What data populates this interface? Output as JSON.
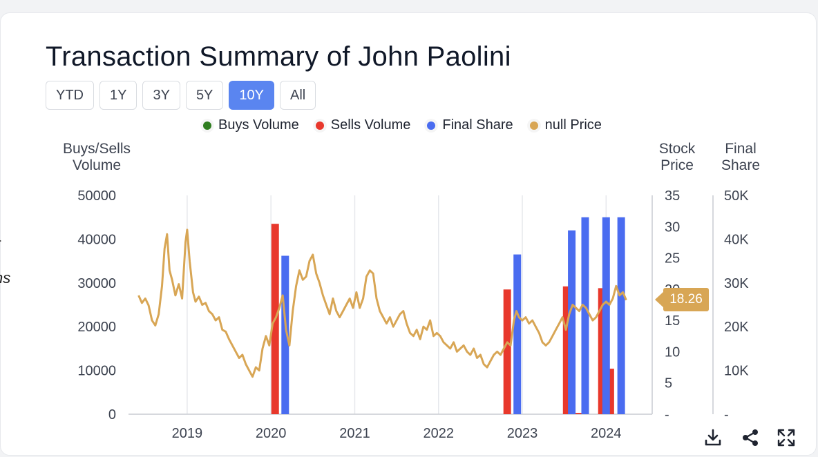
{
  "title": "Transaction Summary of John Paolini",
  "ranges": [
    "YTD",
    "1Y",
    "3Y",
    "5Y",
    "10Y",
    "All"
  ],
  "active_range": "10Y",
  "left_fragment": "ns",
  "tools": {
    "download": "download-icon",
    "share": "share-icon",
    "expand": "expand-icon"
  },
  "chart_data": {
    "type": "bar",
    "legend": [
      {
        "name": "Buys Volume",
        "color": "#2e7d1f"
      },
      {
        "name": "Sells Volume",
        "color": "#e8382c"
      },
      {
        "name": "Final Share",
        "color": "#4a6cf0"
      },
      {
        "name": "null Price",
        "color": "#d8a655"
      }
    ],
    "axes": {
      "left": {
        "title": "Buys/Sells Volume",
        "title_lines": [
          "Buys/Sells",
          "Volume"
        ],
        "ticks": [
          "50000",
          "40000",
          "30000",
          "20000",
          "10000",
          "0"
        ],
        "range": [
          0,
          50000
        ]
      },
      "price": {
        "title": "Stock Price",
        "title_lines": [
          "Stock",
          "Price"
        ],
        "ticks": [
          "35",
          "30",
          "25",
          "20",
          "15",
          "10",
          "5",
          "-"
        ],
        "range": [
          0,
          35
        ]
      },
      "share": {
        "title": "Final Share",
        "title_lines": [
          "Final",
          "Share"
        ],
        "ticks": [
          "50K",
          "40K",
          "30K",
          "20K",
          "10K",
          "-"
        ],
        "range": [
          0,
          50000
        ]
      },
      "x": {
        "ticks": [
          "2019",
          "2020",
          "2021",
          "2022",
          "2023",
          "2024"
        ],
        "range": [
          2018.3,
          2024.55
        ]
      }
    },
    "sells_volume": [
      {
        "x": 2020.05,
        "y": 43500
      },
      {
        "x": 2022.82,
        "y": 28500
      },
      {
        "x": 2023.53,
        "y": 29200
      },
      {
        "x": 2023.67,
        "y": 300
      },
      {
        "x": 2023.95,
        "y": 28800
      },
      {
        "x": 2024.05,
        "y": 10400
      }
    ],
    "final_share": [
      {
        "x": 2020.17,
        "y": 36200
      },
      {
        "x": 2022.94,
        "y": 36500
      },
      {
        "x": 2023.59,
        "y": 42000
      },
      {
        "x": 2023.75,
        "y": 45000
      },
      {
        "x": 2024.0,
        "y": 45000
      },
      {
        "x": 2024.18,
        "y": 45000
      }
    ],
    "price": {
      "last": "18.26",
      "points": [
        [
          2018.42,
          19.0
        ],
        [
          2018.46,
          17.8
        ],
        [
          2018.5,
          18.5
        ],
        [
          2018.54,
          17.4
        ],
        [
          2018.58,
          15.0
        ],
        [
          2018.62,
          14.2
        ],
        [
          2018.66,
          16.0
        ],
        [
          2018.7,
          20.5
        ],
        [
          2018.73,
          26.5
        ],
        [
          2018.76,
          28.8
        ],
        [
          2018.79,
          23.0
        ],
        [
          2018.82,
          21.5
        ],
        [
          2018.86,
          19.0
        ],
        [
          2018.9,
          20.8
        ],
        [
          2018.94,
          18.5
        ],
        [
          2018.98,
          27.5
        ],
        [
          2019.0,
          29.5
        ],
        [
          2019.03,
          24.5
        ],
        [
          2019.07,
          19.5
        ],
        [
          2019.1,
          18.0
        ],
        [
          2019.14,
          18.8
        ],
        [
          2019.18,
          17.5
        ],
        [
          2019.22,
          17.8
        ],
        [
          2019.26,
          16.5
        ],
        [
          2019.3,
          16.0
        ],
        [
          2019.34,
          15.0
        ],
        [
          2019.38,
          15.5
        ],
        [
          2019.42,
          13.5
        ],
        [
          2019.46,
          13.2
        ],
        [
          2019.5,
          12.0
        ],
        [
          2019.54,
          11.0
        ],
        [
          2019.58,
          10.0
        ],
        [
          2019.62,
          9.0
        ],
        [
          2019.66,
          9.5
        ],
        [
          2019.7,
          8.0
        ],
        [
          2019.74,
          7.0
        ],
        [
          2019.78,
          6.0
        ],
        [
          2019.82,
          7.5
        ],
        [
          2019.86,
          7.0
        ],
        [
          2019.9,
          10.5
        ],
        [
          2019.94,
          12.5
        ],
        [
          2019.98,
          11.0
        ],
        [
          2020.02,
          14.5
        ],
        [
          2020.06,
          15.5
        ],
        [
          2020.1,
          17.0
        ],
        [
          2020.14,
          19.0
        ],
        [
          2020.18,
          13.5
        ],
        [
          2020.22,
          11.0
        ],
        [
          2020.26,
          16.5
        ],
        [
          2020.3,
          20.5
        ],
        [
          2020.34,
          23.0
        ],
        [
          2020.38,
          21.5
        ],
        [
          2020.42,
          22.0
        ],
        [
          2020.46,
          24.5
        ],
        [
          2020.5,
          25.5
        ],
        [
          2020.54,
          22.5
        ],
        [
          2020.58,
          21.0
        ],
        [
          2020.62,
          19.0
        ],
        [
          2020.66,
          17.5
        ],
        [
          2020.7,
          16.0
        ],
        [
          2020.74,
          18.5
        ],
        [
          2020.78,
          16.5
        ],
        [
          2020.82,
          15.5
        ],
        [
          2020.86,
          16.5
        ],
        [
          2020.9,
          17.5
        ],
        [
          2020.94,
          18.5
        ],
        [
          2020.98,
          17.0
        ],
        [
          2021.02,
          19.5
        ],
        [
          2021.06,
          17.0
        ],
        [
          2021.1,
          18.5
        ],
        [
          2021.14,
          22.0
        ],
        [
          2021.18,
          23.0
        ],
        [
          2021.22,
          22.5
        ],
        [
          2021.26,
          18.5
        ],
        [
          2021.3,
          16.5
        ],
        [
          2021.34,
          15.5
        ],
        [
          2021.38,
          14.5
        ],
        [
          2021.42,
          15.5
        ],
        [
          2021.46,
          14.0
        ],
        [
          2021.5,
          15.0
        ],
        [
          2021.54,
          16.0
        ],
        [
          2021.58,
          16.5
        ],
        [
          2021.62,
          14.5
        ],
        [
          2021.66,
          13.0
        ],
        [
          2021.7,
          12.5
        ],
        [
          2021.74,
          13.5
        ],
        [
          2021.78,
          12.0
        ],
        [
          2021.82,
          14.0
        ],
        [
          2021.86,
          13.5
        ],
        [
          2021.9,
          15.0
        ],
        [
          2021.94,
          12.5
        ],
        [
          2021.98,
          13.0
        ],
        [
          2022.02,
          12.5
        ],
        [
          2022.06,
          11.5
        ],
        [
          2022.1,
          11.0
        ],
        [
          2022.14,
          10.5
        ],
        [
          2022.18,
          11.5
        ],
        [
          2022.22,
          10.0
        ],
        [
          2022.26,
          10.5
        ],
        [
          2022.3,
          11.0
        ],
        [
          2022.34,
          10.0
        ],
        [
          2022.38,
          9.5
        ],
        [
          2022.42,
          10.5
        ],
        [
          2022.46,
          9.0
        ],
        [
          2022.5,
          9.5
        ],
        [
          2022.54,
          8.0
        ],
        [
          2022.58,
          7.5
        ],
        [
          2022.62,
          8.5
        ],
        [
          2022.66,
          9.5
        ],
        [
          2022.7,
          10.0
        ],
        [
          2022.74,
          9.5
        ],
        [
          2022.78,
          10.5
        ],
        [
          2022.82,
          11.5
        ],
        [
          2022.86,
          11.0
        ],
        [
          2022.9,
          15.0
        ],
        [
          2022.93,
          16.5
        ],
        [
          2022.96,
          15.5
        ],
        [
          2023.0,
          15.0
        ],
        [
          2023.04,
          15.5
        ],
        [
          2023.08,
          14.5
        ],
        [
          2023.12,
          15.0
        ],
        [
          2023.16,
          14.0
        ],
        [
          2023.2,
          13.0
        ],
        [
          2023.24,
          11.5
        ],
        [
          2023.28,
          11.0
        ],
        [
          2023.32,
          11.5
        ],
        [
          2023.36,
          12.5
        ],
        [
          2023.4,
          13.5
        ],
        [
          2023.44,
          14.5
        ],
        [
          2023.48,
          15.5
        ],
        [
          2023.52,
          13.5
        ],
        [
          2023.56,
          16.0
        ],
        [
          2023.6,
          17.5
        ],
        [
          2023.64,
          17.0
        ],
        [
          2023.68,
          16.5
        ],
        [
          2023.72,
          17.5
        ],
        [
          2023.76,
          17.0
        ],
        [
          2023.8,
          16.0
        ],
        [
          2023.84,
          15.0
        ],
        [
          2023.88,
          15.5
        ],
        [
          2023.92,
          16.5
        ],
        [
          2023.96,
          17.5
        ],
        [
          2024.0,
          18.0
        ],
        [
          2024.04,
          17.5
        ],
        [
          2024.08,
          18.5
        ],
        [
          2024.12,
          20.5
        ],
        [
          2024.16,
          19.0
        ],
        [
          2024.2,
          19.5
        ],
        [
          2024.24,
          18.26
        ]
      ]
    }
  }
}
